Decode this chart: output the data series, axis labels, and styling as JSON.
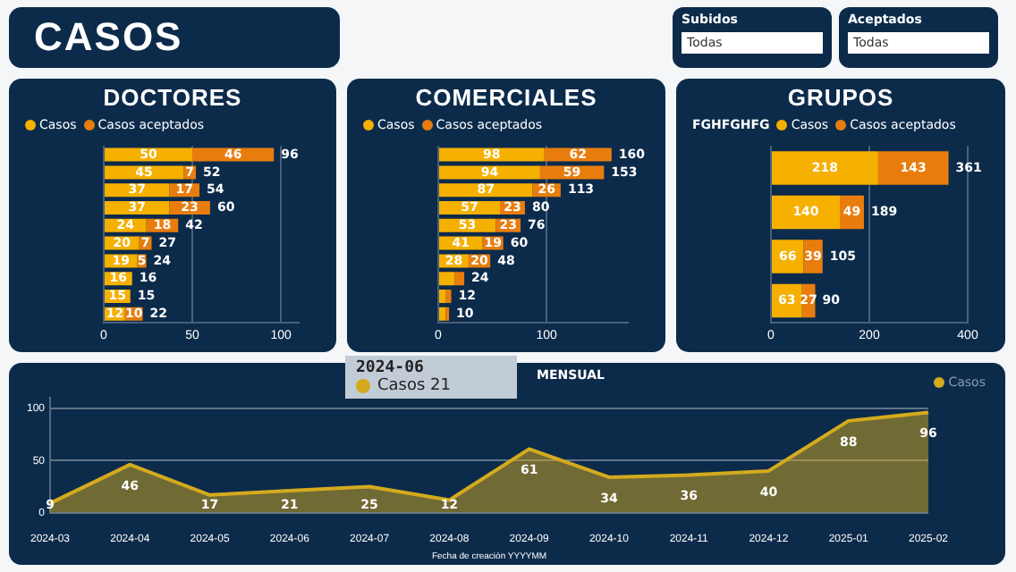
{
  "chart_data": [
    {
      "type": "other",
      "title": "CASOS"
    },
    {
      "type": "other",
      "annotations": [
        "Subidos",
        "Todas",
        "Aceptados",
        "Todas"
      ]
    },
    {
      "type": "bar",
      "title": "DOCTORES",
      "orientation": "horizontal",
      "stacked": true,
      "legend": "top left",
      "grid": "x",
      "categories": [
        null,
        null,
        null,
        null,
        null,
        null,
        null,
        null,
        null,
        null
      ],
      "series": [
        {
          "name": "Casos",
          "color": "#f5b000",
          "values": [
            50,
            45,
            37,
            37,
            24,
            20,
            19,
            16,
            15,
            12
          ],
          "value_labels": [
            "50",
            "45",
            "37",
            "37",
            "24",
            "20",
            "19",
            "16",
            "15",
            "12"
          ]
        },
        {
          "name": "Casos aceptados",
          "color": "#e87d0e",
          "values": [
            46,
            7,
            17,
            23,
            18,
            7,
            5,
            null,
            null,
            10
          ],
          "value_labels": [
            "46",
            "7",
            "17",
            "23",
            "18",
            "7",
            "5",
            null,
            null,
            "10"
          ]
        }
      ],
      "totals": [
        "96",
        "52",
        "54",
        "60",
        "42",
        "27",
        "24",
        "16",
        "15",
        "22"
      ],
      "xlim": [
        0,
        110
      ],
      "xticks": [
        0,
        50,
        100
      ]
    },
    {
      "type": "bar",
      "title": "COMERCIALES",
      "orientation": "horizontal",
      "stacked": true,
      "legend": "top left",
      "grid": "x",
      "categories": [
        null,
        null,
        null,
        null,
        null,
        null,
        null,
        null,
        null,
        null
      ],
      "series": [
        {
          "name": "Casos",
          "color": "#f5b000",
          "values": [
            98,
            94,
            87,
            57,
            53,
            41,
            28,
            15,
            7,
            7
          ],
          "value_labels": [
            "98",
            "94",
            "87",
            "57",
            "53",
            "41",
            "28",
            null,
            null,
            null
          ]
        },
        {
          "name": "Casos aceptados",
          "color": "#e87d0e",
          "values": [
            62,
            59,
            26,
            23,
            23,
            19,
            20,
            9,
            5,
            3
          ],
          "value_labels": [
            "62",
            "59",
            "26",
            "23",
            "23",
            "19",
            "20",
            null,
            null,
            null
          ]
        }
      ],
      "totals": [
        "160",
        "153",
        "113",
        "80",
        "76",
        "60",
        "48",
        "24",
        "12",
        "10"
      ],
      "xlim": [
        0,
        175
      ],
      "xticks": [
        0,
        100
      ]
    },
    {
      "type": "bar",
      "title": "GRUPOS",
      "orientation": "horizontal",
      "stacked": true,
      "legend": "top left",
      "legend_title": "FGHFGHFG",
      "grid": "x",
      "categories": [
        null,
        null,
        null,
        null
      ],
      "series": [
        {
          "name": "Casos",
          "color": "#f5b000",
          "values": [
            218,
            140,
            66,
            63
          ],
          "value_labels": [
            "218",
            "140",
            "66",
            "63"
          ]
        },
        {
          "name": "Casos aceptados",
          "color": "#e87d0e",
          "values": [
            143,
            49,
            39,
            27
          ],
          "value_labels": [
            "143",
            "49",
            "39",
            "27"
          ]
        }
      ],
      "totals": [
        "361",
        "189",
        "105",
        "90"
      ],
      "xlim": [
        0,
        400
      ],
      "xticks": [
        0,
        200,
        400
      ]
    },
    {
      "type": "area",
      "title": "MENSUAL",
      "xlabel": "Fecha de creación YYYYMM",
      "legend": "top right",
      "grid": "y",
      "data_labels": true,
      "categories": [
        "2024-03",
        "2024-04",
        "2024-05",
        "2024-06",
        "2024-07",
        "2024-08",
        "2024-09",
        "2024-10",
        "2024-11",
        "2024-12",
        "2025-01",
        "2025-02"
      ],
      "series": [
        {
          "name": "Casos",
          "color": "#d4aa1e",
          "values": [
            9,
            46,
            17,
            21,
            25,
            12,
            61,
            34,
            36,
            40,
            88,
            96
          ]
        }
      ],
      "ylim": [
        0,
        110
      ],
      "yticks": [
        0,
        50,
        100
      ],
      "annotations": [
        "2024-06",
        "Casos 21"
      ]
    }
  ]
}
